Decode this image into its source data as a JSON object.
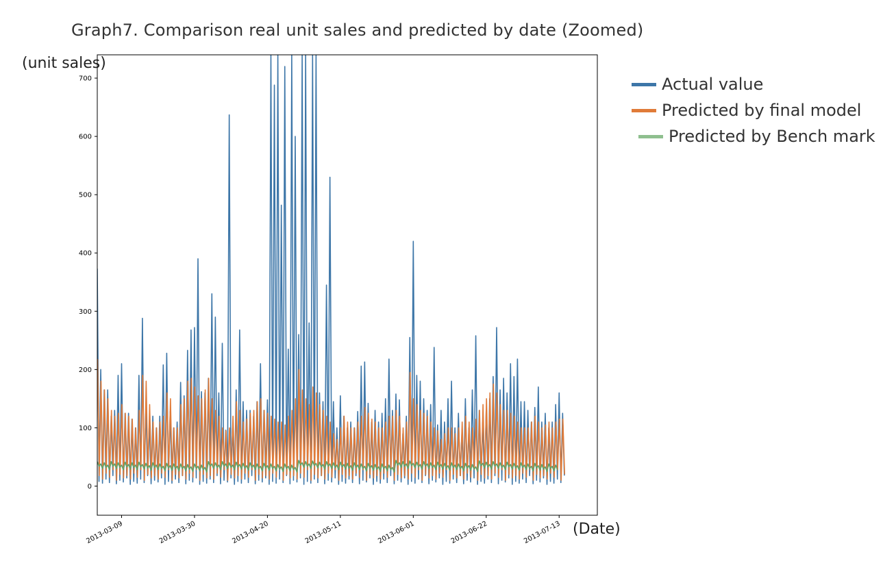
{
  "chart_data": {
    "type": "line",
    "title": "Graph7. Comparison real unit sales and predicted by date (Zoomed)",
    "ylabel": "(unit sales)",
    "xlabel": "(Date)",
    "ylim": [
      -50,
      740
    ],
    "xlim": [
      "2013-03-02",
      "2013-07-24"
    ],
    "y_ticks": [
      0,
      100,
      200,
      300,
      400,
      500,
      600,
      700
    ],
    "x_ticks": [
      "2013-03-09",
      "2013-03-30",
      "2013-04-20",
      "2013-05-11",
      "2013-06-01",
      "2013-06-22",
      "2013-07-13"
    ],
    "grid": false,
    "legend_position": "outside right, top",
    "series": [
      {
        "name": "Actual value",
        "color": "#3d76a8",
        "note": "daily peak values (spiky); troughs near 5-20",
        "x_start": "2013-03-02",
        "peaks": [
          373,
          200,
          165,
          165,
          120,
          130,
          190,
          210,
          125,
          125,
          115,
          100,
          190,
          288,
          135,
          110,
          120,
          100,
          120,
          208,
          228,
          128,
          100,
          110,
          178,
          155,
          233,
          268,
          272,
          390,
          162,
          160,
          185,
          330,
          290,
          160,
          245,
          96,
          637,
          100,
          165,
          268,
          145,
          130,
          130,
          120,
          145,
          210,
          130,
          148,
          740,
          688,
          740,
          482,
          720,
          235,
          740,
          600,
          260,
          740,
          740,
          280,
          740,
          740,
          160,
          145,
          345,
          530,
          145,
          100,
          155,
          120,
          100,
          110,
          100,
          128,
          206,
          213,
          142,
          110,
          130,
          110,
          125,
          150,
          218,
          130,
          158,
          148,
          90,
          120,
          255,
          420,
          190,
          180,
          150,
          130,
          140,
          238,
          105,
          130,
          110,
          150,
          180,
          100,
          125,
          90,
          150,
          100,
          165,
          258,
          130,
          110,
          130,
          150,
          188,
          272,
          165,
          185,
          160,
          210,
          188,
          218,
          145,
          145,
          130,
          110,
          135,
          170,
          110,
          125,
          100,
          110,
          140,
          160,
          125
        ]
      },
      {
        "name": "Predicted by final model",
        "color": "#e07b39",
        "note": "daily peak values; troughs near 10-30",
        "x_start": "2013-03-02",
        "peaks": [
          218,
          180,
          165,
          150,
          130,
          120,
          125,
          140,
          125,
          120,
          115,
          100,
          130,
          190,
          180,
          140,
          110,
          100,
          110,
          120,
          160,
          150,
          100,
          100,
          140,
          150,
          180,
          185,
          170,
          155,
          150,
          165,
          185,
          150,
          130,
          120,
          100,
          95,
          100,
          120,
          145,
          130,
          110,
          115,
          125,
          130,
          145,
          150,
          130,
          125,
          120,
          115,
          110,
          110,
          105,
          120,
          130,
          150,
          200,
          165,
          150,
          140,
          170,
          160,
          140,
          130,
          120,
          110,
          90,
          80,
          100,
          120,
          110,
          100,
          100,
          110,
          120,
          135,
          125,
          115,
          110,
          100,
          100,
          110,
          120,
          120,
          130,
          120,
          100,
          110,
          195,
          150,
          140,
          130,
          125,
          120,
          110,
          100,
          95,
          80,
          90,
          100,
          100,
          90,
          100,
          110,
          120,
          110,
          100,
          115,
          130,
          140,
          150,
          160,
          175,
          160,
          140,
          130,
          130,
          125,
          120,
          110,
          100,
          100,
          100,
          110,
          120,
          110,
          100,
          105,
          110,
          100,
          110,
          115,
          115
        ]
      },
      {
        "name": "Predicted by Bench mark",
        "color": "#5fa36a",
        "note": "weekly oscillating band; daily values",
        "x_start": "2013-03-02",
        "levels": [
          42,
          38,
          40,
          36,
          42,
          38,
          40,
          36,
          41,
          37,
          40,
          36,
          41,
          37,
          39,
          35,
          40,
          36,
          38,
          34,
          39,
          35,
          38,
          34,
          38,
          34,
          37,
          33,
          38,
          34,
          36,
          32,
          42,
          38,
          40,
          36,
          42,
          38,
          40,
          36,
          41,
          37,
          39,
          35,
          40,
          36,
          38,
          34,
          39,
          35,
          38,
          34,
          37,
          33,
          38,
          34,
          36,
          32,
          44,
          40,
          42,
          38,
          43,
          39,
          41,
          37,
          42,
          38,
          40,
          36,
          41,
          37,
          39,
          35,
          40,
          36,
          38,
          34,
          39,
          35,
          37,
          33,
          38,
          34,
          36,
          32,
          44,
          40,
          42,
          38,
          43,
          39,
          41,
          37,
          42,
          38,
          40,
          36,
          41,
          37,
          39,
          35,
          40,
          36,
          38,
          34,
          39,
          35,
          37,
          33,
          43,
          39,
          41,
          37,
          42,
          38,
          40,
          36,
          41,
          37,
          39,
          35,
          40,
          36,
          38,
          34,
          39,
          35,
          37,
          33,
          38,
          34,
          36
        ]
      }
    ]
  }
}
